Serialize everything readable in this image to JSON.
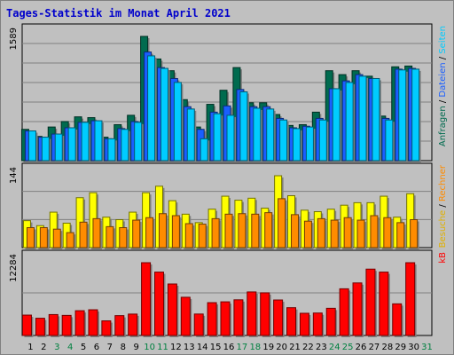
{
  "title": "Tages-Statistik im Monat April 2021",
  "colors": {
    "hits": "#006b4f",
    "files": "#1a5fff",
    "pages": "#00ccff",
    "visits": "#ffff00",
    "sites": "#ff8c00",
    "kbytes": "#ff0000",
    "weekend_day": "#008040",
    "weekday": "#000000"
  },
  "chart_data": [
    {
      "type": "bar",
      "panel": "top",
      "y_max_label": "1589",
      "right_axis_label": {
        "parts": [
          "Anfragen",
          "Dateien",
          "Seiten"
        ],
        "separator": " / ",
        "colors": [
          "#006b4f",
          "#1a5fff",
          "#00ccff"
        ]
      },
      "categories": [
        "1",
        "2",
        "3",
        "4",
        "5",
        "6",
        "7",
        "8",
        "9",
        "10",
        "11",
        "12",
        "13",
        "14",
        "15",
        "16",
        "17",
        "18",
        "19",
        "20",
        "21",
        "22",
        "23",
        "24",
        "25",
        "26",
        "27",
        "28",
        "29",
        "30",
        "31"
      ],
      "series": [
        {
          "name": "Anfragen",
          "values": [
            400,
            310,
            430,
            500,
            560,
            550,
            300,
            460,
            580,
            1589,
            1300,
            1150,
            780,
            430,
            720,
            900,
            1190,
            740,
            740,
            590,
            450,
            460,
            620,
            1150,
            1100,
            1150,
            1080,
            570,
            1200,
            1210,
            0
          ]
        },
        {
          "name": "Dateien",
          "values": [
            380,
            300,
            340,
            420,
            490,
            510,
            280,
            410,
            500,
            1389,
            1190,
            1050,
            690,
            400,
            620,
            700,
            910,
            690,
            690,
            540,
            420,
            440,
            540,
            920,
            1020,
            1100,
            1050,
            540,
            1170,
            1180,
            0
          ]
        },
        {
          "name": "Seiten",
          "values": [
            380,
            300,
            340,
            420,
            490,
            510,
            280,
            400,
            490,
            1340,
            1180,
            1000,
            660,
            280,
            600,
            580,
            880,
            670,
            660,
            520,
            410,
            430,
            520,
            920,
            1000,
            1080,
            1050,
            520,
            1160,
            1170,
            0
          ]
        }
      ]
    },
    {
      "type": "bar",
      "panel": "middle",
      "y_max_label": "144",
      "right_axis_label": {
        "parts": [
          "Besuche",
          "Rechner"
        ],
        "separator": " / ",
        "colors": [
          "#e0b000",
          "#ff8c00"
        ]
      },
      "categories": [
        "1",
        "2",
        "3",
        "4",
        "5",
        "6",
        "7",
        "8",
        "9",
        "10",
        "11",
        "12",
        "13",
        "14",
        "15",
        "16",
        "17",
        "18",
        "19",
        "20",
        "21",
        "22",
        "23",
        "24",
        "25",
        "26",
        "27",
        "28",
        "29",
        "30",
        "31"
      ],
      "series": [
        {
          "name": "Besuche",
          "values": [
            54,
            44,
            71,
            49,
            100,
            110,
            61,
            56,
            71,
            110,
            123,
            94,
            67,
            50,
            77,
            103,
            95,
            99,
            79,
            144,
            104,
            75,
            72,
            77,
            85,
            90,
            90,
            103,
            61,
            108,
            0
          ]
        },
        {
          "name": "Rechner",
          "values": [
            40,
            40,
            37,
            30,
            51,
            58,
            42,
            40,
            55,
            60,
            68,
            64,
            48,
            47,
            58,
            67,
            68,
            67,
            70,
            98,
            66,
            53,
            58,
            55,
            60,
            55,
            64,
            60,
            50,
            56,
            0
          ]
        }
      ]
    },
    {
      "type": "bar",
      "panel": "bottom",
      "y_max_label": "12284",
      "right_axis_label": {
        "parts": [
          "kB"
        ],
        "separator": "",
        "colors": [
          "#ff0000"
        ]
      },
      "categories": [
        "1",
        "2",
        "3",
        "4",
        "5",
        "6",
        "7",
        "8",
        "9",
        "10",
        "11",
        "12",
        "13",
        "14",
        "15",
        "16",
        "17",
        "18",
        "19",
        "20",
        "21",
        "22",
        "23",
        "24",
        "25",
        "26",
        "27",
        "28",
        "29",
        "30",
        "31"
      ],
      "series": [
        {
          "name": "kB",
          "values": [
            3440,
            2910,
            3530,
            3390,
            4180,
            4340,
            2470,
            3350,
            3610,
            12284,
            10700,
            8690,
            6450,
            3620,
            5540,
            5680,
            6020,
            7350,
            7200,
            5990,
            4690,
            3750,
            3790,
            4590,
            7880,
            8870,
            11200,
            10700,
            5340,
            12284,
            0
          ]
        }
      ]
    }
  ],
  "x_labels": [
    {
      "label": "1",
      "weekend": false
    },
    {
      "label": "2",
      "weekend": false
    },
    {
      "label": "3",
      "weekend": true
    },
    {
      "label": "4",
      "weekend": true
    },
    {
      "label": "5",
      "weekend": false
    },
    {
      "label": "6",
      "weekend": false
    },
    {
      "label": "7",
      "weekend": false
    },
    {
      "label": "8",
      "weekend": false
    },
    {
      "label": "9",
      "weekend": false
    },
    {
      "label": "10",
      "weekend": true
    },
    {
      "label": "11",
      "weekend": true
    },
    {
      "label": "12",
      "weekend": false
    },
    {
      "label": "13",
      "weekend": false
    },
    {
      "label": "14",
      "weekend": false
    },
    {
      "label": "15",
      "weekend": false
    },
    {
      "label": "16",
      "weekend": false
    },
    {
      "label": "17",
      "weekend": true
    },
    {
      "label": "18",
      "weekend": true
    },
    {
      "label": "19",
      "weekend": false
    },
    {
      "label": "20",
      "weekend": false
    },
    {
      "label": "21",
      "weekend": false
    },
    {
      "label": "22",
      "weekend": false
    },
    {
      "label": "23",
      "weekend": false
    },
    {
      "label": "24",
      "weekend": true
    },
    {
      "label": "25",
      "weekend": true
    },
    {
      "label": "26",
      "weekend": false
    },
    {
      "label": "27",
      "weekend": false
    },
    {
      "label": "28",
      "weekend": false
    },
    {
      "label": "29",
      "weekend": false
    },
    {
      "label": "30",
      "weekend": false
    },
    {
      "label": "31",
      "weekend": true
    }
  ]
}
